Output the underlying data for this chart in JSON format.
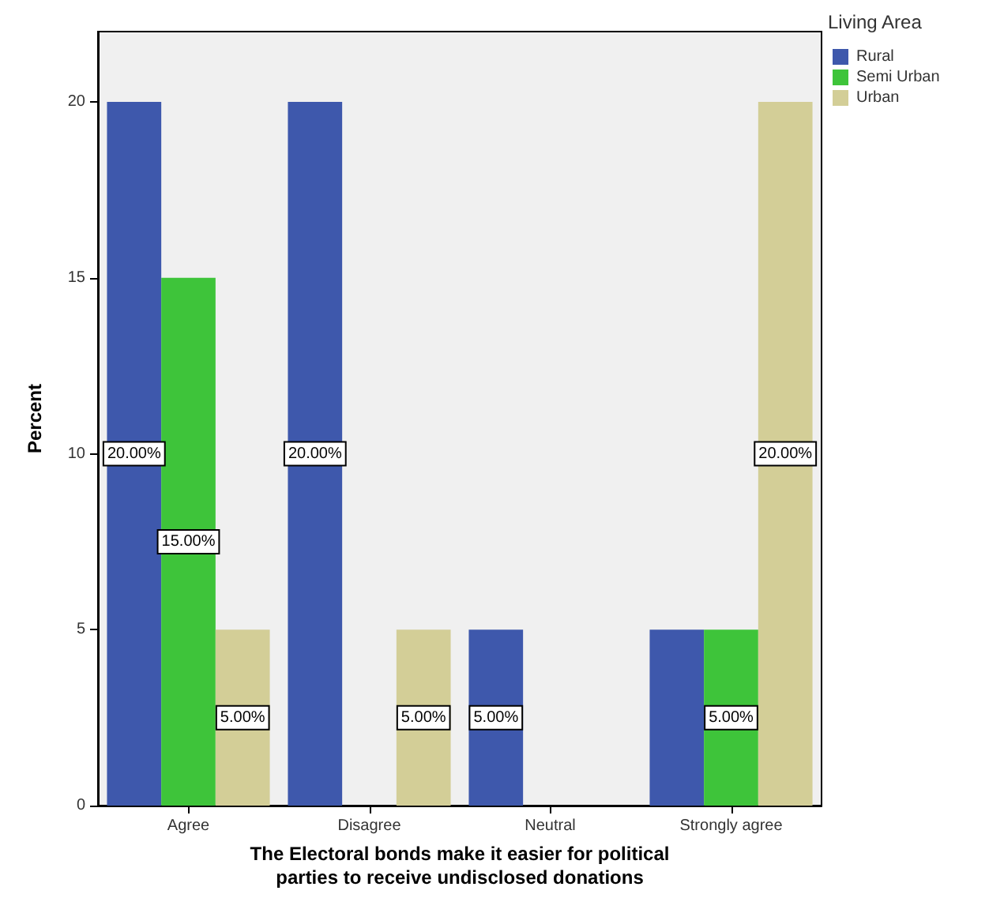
{
  "chart_data": {
    "type": "bar",
    "xlabel": "The Electoral bonds make it easier for political\nparties to receive undisclosed donations",
    "ylabel": "Percent",
    "legend_title": "Living Area",
    "legend": "top right",
    "grid": false,
    "categories": [
      "Agree",
      "Disagree",
      "Neutral",
      "Strongly agree"
    ],
    "ylim": [
      0,
      22
    ],
    "yticks": [
      0,
      5,
      10,
      15,
      20
    ],
    "series": [
      {
        "name": "Rural",
        "color": "#3e58ac",
        "values": [
          20,
          20,
          5,
          5
        ],
        "value_labels": [
          "20.00%",
          "20.00%",
          "5.00%",
          null
        ]
      },
      {
        "name": "Semi Urban",
        "color": "#3ec43a",
        "values": [
          15,
          null,
          null,
          5
        ],
        "value_labels": [
          "15.00%",
          null,
          null,
          "5.00%"
        ]
      },
      {
        "name": "Urban",
        "color": "#d3ce97",
        "values": [
          5,
          5,
          null,
          20
        ],
        "value_labels": [
          "5.00%",
          "5.00%",
          null,
          "20.00%"
        ]
      }
    ]
  }
}
